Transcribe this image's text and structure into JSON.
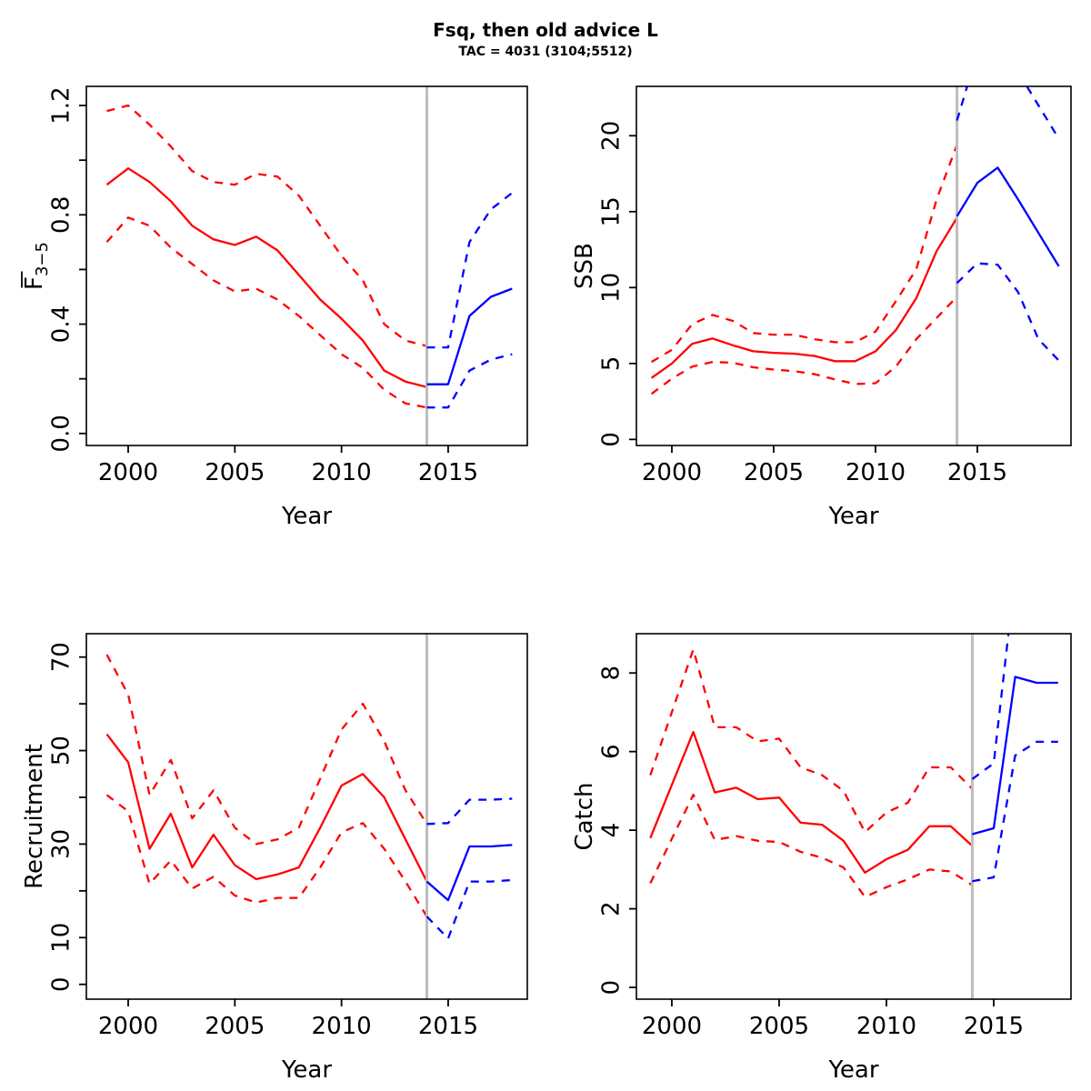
{
  "header": {
    "title": "Fsq, then old advice L",
    "subtitle": "TAC = 4031 (3104;5512)"
  },
  "colors": {
    "historical": "#FF0000",
    "projection": "#0000FF",
    "assessment_year_line": "#BDBDBD",
    "axis": "#000000"
  },
  "chart_data": [
    {
      "id": "fbar",
      "type": "line",
      "title": "",
      "xlabel": "Year",
      "ylabel": {
        "text": "F",
        "sub": "3−5",
        "overline": true
      },
      "xlim": [
        1998.04,
        2018.71
      ],
      "ylim": [
        -0.044,
        1.27
      ],
      "xticks": [
        {
          "v": 2000,
          "l": "2000"
        },
        {
          "v": 2005,
          "l": "2005"
        },
        {
          "v": 2010,
          "l": "2010"
        },
        {
          "v": 2015,
          "l": "2015"
        }
      ],
      "yticks": [
        {
          "v": 0,
          "l": "0.0"
        },
        {
          "v": 0.2,
          "l": ""
        },
        {
          "v": 0.4,
          "l": "0.4"
        },
        {
          "v": 0.6,
          "l": ""
        },
        {
          "v": 0.8,
          "l": "0.8"
        },
        {
          "v": 1.0,
          "l": ""
        },
        {
          "v": 1.2,
          "l": "1.2"
        }
      ],
      "vline_x": 2014,
      "series": [
        {
          "name": "historical-median",
          "color": "#FF0000",
          "dash": false,
          "x": [
            1999,
            2000,
            2001,
            2002,
            2003,
            2004,
            2005,
            2006,
            2007,
            2008,
            2009,
            2010,
            2011,
            2012,
            2013,
            2014
          ],
          "y": [
            0.91,
            0.97,
            0.92,
            0.85,
            0.76,
            0.71,
            0.69,
            0.72,
            0.67,
            0.58,
            0.49,
            0.42,
            0.34,
            0.23,
            0.19,
            0.17
          ]
        },
        {
          "name": "historical-upper-ci",
          "color": "#FF0000",
          "dash": true,
          "x": [
            1999,
            2000,
            2001,
            2002,
            2003,
            2004,
            2005,
            2006,
            2007,
            2008,
            2009,
            2010,
            2011,
            2012,
            2013,
            2014
          ],
          "y": [
            1.18,
            1.2,
            1.13,
            1.05,
            0.96,
            0.92,
            0.91,
            0.95,
            0.94,
            0.87,
            0.76,
            0.65,
            0.56,
            0.4,
            0.34,
            0.32
          ]
        },
        {
          "name": "historical-lower-ci",
          "color": "#FF0000",
          "dash": true,
          "x": [
            1999,
            2000,
            2001,
            2002,
            2003,
            2004,
            2005,
            2006,
            2007,
            2008,
            2009,
            2010,
            2011,
            2012,
            2013,
            2014
          ],
          "y": [
            0.7,
            0.79,
            0.76,
            0.68,
            0.62,
            0.56,
            0.52,
            0.53,
            0.49,
            0.43,
            0.36,
            0.29,
            0.24,
            0.16,
            0.11,
            0.095
          ]
        },
        {
          "name": "projection-median",
          "color": "#0000FF",
          "dash": false,
          "x": [
            2014,
            2015,
            2016,
            2017,
            2018
          ],
          "y": [
            0.18,
            0.18,
            0.43,
            0.5,
            0.53
          ]
        },
        {
          "name": "projection-upper-ci",
          "color": "#0000FF",
          "dash": true,
          "x": [
            2014,
            2015,
            2016,
            2017,
            2018
          ],
          "y": [
            0.315,
            0.315,
            0.7,
            0.82,
            0.88
          ]
        },
        {
          "name": "projection-lower-ci",
          "color": "#0000FF",
          "dash": true,
          "x": [
            2014,
            2015,
            2016,
            2017,
            2018
          ],
          "y": [
            0.095,
            0.095,
            0.23,
            0.27,
            0.29
          ]
        }
      ]
    },
    {
      "id": "ssb",
      "type": "line",
      "title": "",
      "xlabel": "Year",
      "ylabel": {
        "text": "SSB",
        "sub": "",
        "overline": false
      },
      "xlim": [
        1998.26,
        2019.6
      ],
      "ylim": [
        -0.4,
        23.25
      ],
      "xticks": [
        {
          "v": 2000,
          "l": "2000"
        },
        {
          "v": 2005,
          "l": "2005"
        },
        {
          "v": 2010,
          "l": "2010"
        },
        {
          "v": 2015,
          "l": "2015"
        }
      ],
      "yticks": [
        {
          "v": 0,
          "l": "0"
        },
        {
          "v": 5,
          "l": "5"
        },
        {
          "v": 10,
          "l": "10"
        },
        {
          "v": 15,
          "l": "15"
        },
        {
          "v": 20,
          "l": "20"
        }
      ],
      "vline_x": 2014,
      "series": [
        {
          "name": "historical-median",
          "color": "#FF0000",
          "dash": false,
          "x": [
            1999,
            2000,
            2001,
            2002,
            2003,
            2004,
            2005,
            2006,
            2007,
            2008,
            2009,
            2010,
            2011,
            2012,
            2013,
            2014
          ],
          "y": [
            4.05,
            5.0,
            6.3,
            6.65,
            6.2,
            5.8,
            5.7,
            5.65,
            5.5,
            5.15,
            5.15,
            5.8,
            7.2,
            9.3,
            12.4,
            14.6
          ]
        },
        {
          "name": "historical-upper-ci",
          "color": "#FF0000",
          "dash": true,
          "x": [
            1999,
            2000,
            2001,
            2002,
            2003,
            2004,
            2005,
            2006,
            2007,
            2008,
            2009,
            2010,
            2011,
            2012,
            2013,
            2014
          ],
          "y": [
            5.1,
            5.9,
            7.6,
            8.2,
            7.8,
            7.0,
            6.9,
            6.9,
            6.6,
            6.4,
            6.4,
            7.1,
            9.1,
            11.2,
            15.8,
            19.4
          ]
        },
        {
          "name": "historical-lower-ci",
          "color": "#FF0000",
          "dash": true,
          "x": [
            1999,
            2000,
            2001,
            2002,
            2003,
            2004,
            2005,
            2006,
            2007,
            2008,
            2009,
            2010,
            2011,
            2012,
            2013,
            2014
          ],
          "y": [
            3.0,
            4.0,
            4.8,
            5.1,
            5.05,
            4.75,
            4.6,
            4.5,
            4.3,
            3.95,
            3.65,
            3.7,
            4.8,
            6.6,
            8.0,
            9.4
          ]
        },
        {
          "name": "projection-median",
          "color": "#0000FF",
          "dash": false,
          "x": [
            2014,
            2015,
            2016,
            2017,
            2018,
            2019
          ],
          "y": [
            14.7,
            16.9,
            17.9,
            15.8,
            13.6,
            11.4
          ]
        },
        {
          "name": "projection-upper-ci",
          "color": "#0000FF",
          "dash": true,
          "x": [
            2014,
            2015,
            2016,
            2017,
            2018,
            2019
          ],
          "y": [
            21.0,
            25.5,
            26.5,
            24.2,
            22.0,
            19.8
          ]
        },
        {
          "name": "projection-lower-ci",
          "color": "#0000FF",
          "dash": true,
          "x": [
            2014,
            2015,
            2016,
            2017,
            2018,
            2019
          ],
          "y": [
            10.3,
            11.6,
            11.5,
            9.7,
            6.6,
            5.2
          ]
        }
      ]
    },
    {
      "id": "recruitment",
      "type": "line",
      "title": "",
      "xlabel": "Year",
      "ylabel": {
        "text": "Recruitment",
        "sub": "",
        "overline": false
      },
      "xlim": [
        1998.04,
        2018.71
      ],
      "ylim": [
        -3.17,
        75.0
      ],
      "xticks": [
        {
          "v": 2000,
          "l": "2000"
        },
        {
          "v": 2005,
          "l": "2005"
        },
        {
          "v": 2010,
          "l": "2010"
        },
        {
          "v": 2015,
          "l": "2015"
        }
      ],
      "yticks": [
        {
          "v": 0,
          "l": "0"
        },
        {
          "v": 10,
          "l": "10"
        },
        {
          "v": 20,
          "l": ""
        },
        {
          "v": 30,
          "l": "30"
        },
        {
          "v": 40,
          "l": ""
        },
        {
          "v": 50,
          "l": "50"
        },
        {
          "v": 60,
          "l": ""
        },
        {
          "v": 70,
          "l": "70"
        }
      ],
      "vline_x": 2014,
      "series": [
        {
          "name": "historical-median",
          "color": "#FF0000",
          "dash": false,
          "x": [
            1999,
            2000,
            2001,
            2002,
            2003,
            2004,
            2005,
            2006,
            2007,
            2008,
            2009,
            2010,
            2011,
            2012,
            2013,
            2014
          ],
          "y": [
            53.5,
            47.5,
            29,
            36.5,
            25,
            32,
            25.5,
            22.5,
            23.5,
            25,
            33.5,
            42.5,
            45,
            40,
            31,
            22
          ]
        },
        {
          "name": "historical-upper-ci",
          "color": "#FF0000",
          "dash": true,
          "x": [
            1999,
            2000,
            2001,
            2002,
            2003,
            2004,
            2005,
            2006,
            2007,
            2008,
            2009,
            2010,
            2011,
            2012,
            2013,
            2014
          ],
          "y": [
            70.5,
            62,
            40.5,
            48,
            35.5,
            41.5,
            33.5,
            30,
            31,
            33.5,
            44,
            54.5,
            60,
            52,
            41.5,
            34.3
          ]
        },
        {
          "name": "historical-lower-ci",
          "color": "#FF0000",
          "dash": true,
          "x": [
            1999,
            2000,
            2001,
            2002,
            2003,
            2004,
            2005,
            2006,
            2007,
            2008,
            2009,
            2010,
            2011,
            2012,
            2013,
            2014
          ],
          "y": [
            40.5,
            37,
            21.5,
            26.5,
            20.5,
            23,
            19,
            17.5,
            18.5,
            18.5,
            25,
            32.5,
            34.5,
            29,
            22,
            14.5
          ]
        },
        {
          "name": "projection-median",
          "color": "#0000FF",
          "dash": false,
          "x": [
            2014,
            2015,
            2016,
            2017,
            2018
          ],
          "y": [
            22,
            18,
            29.5,
            29.5,
            29.8
          ]
        },
        {
          "name": "projection-upper-ci",
          "color": "#0000FF",
          "dash": true,
          "x": [
            2014,
            2015,
            2016,
            2017,
            2018
          ],
          "y": [
            34.3,
            34.5,
            39.5,
            39.5,
            39.7
          ]
        },
        {
          "name": "projection-lower-ci",
          "color": "#0000FF",
          "dash": true,
          "x": [
            2014,
            2015,
            2016,
            2017,
            2018
          ],
          "y": [
            14.5,
            9.8,
            22,
            22,
            22.3
          ]
        }
      ]
    },
    {
      "id": "catch",
      "type": "line",
      "title": "",
      "xlabel": "Year",
      "ylabel": {
        "text": "Catch",
        "sub": "",
        "overline": false
      },
      "xlim": [
        1998.35,
        2018.6
      ],
      "ylim": [
        -0.3,
        9.0
      ],
      "xticks": [
        {
          "v": 2000,
          "l": "2000"
        },
        {
          "v": 2005,
          "l": "2005"
        },
        {
          "v": 2010,
          "l": "2010"
        },
        {
          "v": 2015,
          "l": "2015"
        }
      ],
      "yticks": [
        {
          "v": 0,
          "l": "0"
        },
        {
          "v": 2,
          "l": "2"
        },
        {
          "v": 4,
          "l": "4"
        },
        {
          "v": 6,
          "l": "6"
        },
        {
          "v": 8,
          "l": "8"
        }
      ],
      "vline_x": 2014,
      "series": [
        {
          "name": "historical-median",
          "color": "#FF0000",
          "dash": false,
          "x": [
            1999,
            2000,
            2001,
            2002,
            2003,
            2004,
            2005,
            2006,
            2007,
            2008,
            2009,
            2010,
            2011,
            2012,
            2013,
            2014
          ],
          "y": [
            3.8,
            5.15,
            6.5,
            4.96,
            5.08,
            4.79,
            4.83,
            4.19,
            4.14,
            3.73,
            2.92,
            3.26,
            3.5,
            4.1,
            4.1,
            3.6
          ]
        },
        {
          "name": "historical-upper-ci",
          "color": "#FF0000",
          "dash": true,
          "x": [
            1999,
            2000,
            2001,
            2002,
            2003,
            2004,
            2005,
            2006,
            2007,
            2008,
            2009,
            2010,
            2011,
            2012,
            2013,
            2014
          ],
          "y": [
            5.4,
            7.0,
            8.6,
            6.62,
            6.62,
            6.26,
            6.33,
            5.6,
            5.4,
            5.0,
            3.95,
            4.45,
            4.7,
            5.6,
            5.6,
            5.05
          ]
        },
        {
          "name": "historical-lower-ci",
          "color": "#FF0000",
          "dash": true,
          "x": [
            1999,
            2000,
            2001,
            2002,
            2003,
            2004,
            2005,
            2006,
            2007,
            2008,
            2009,
            2010,
            2011,
            2012,
            2013,
            2014
          ],
          "y": [
            2.65,
            3.78,
            4.9,
            3.75,
            3.85,
            3.73,
            3.7,
            3.45,
            3.3,
            3.05,
            2.3,
            2.55,
            2.75,
            3.0,
            2.95,
            2.6
          ]
        },
        {
          "name": "projection-median",
          "color": "#0000FF",
          "dash": false,
          "x": [
            2014,
            2015,
            2016,
            2017,
            2018
          ],
          "y": [
            3.9,
            4.05,
            7.9,
            7.75,
            7.75
          ]
        },
        {
          "name": "projection-upper-ci",
          "color": "#0000FF",
          "dash": true,
          "x": [
            2014,
            2015,
            2016,
            2017,
            2018
          ],
          "y": [
            5.3,
            5.7,
            10.5,
            10.8,
            10.8
          ]
        },
        {
          "name": "projection-lower-ci",
          "color": "#0000FF",
          "dash": true,
          "x": [
            2014,
            2015,
            2016,
            2017,
            2018
          ],
          "y": [
            2.7,
            2.8,
            5.9,
            6.25,
            6.25
          ]
        }
      ]
    }
  ]
}
